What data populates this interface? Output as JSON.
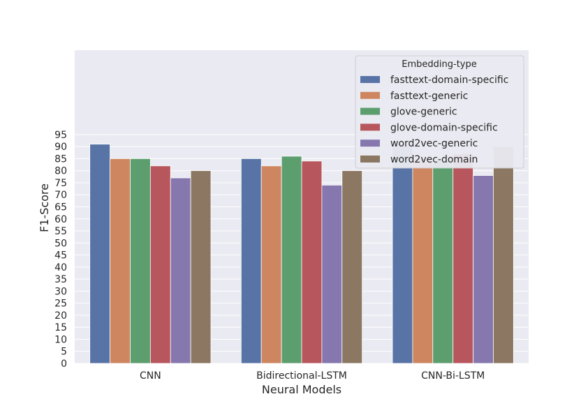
{
  "chart_data": {
    "type": "bar",
    "categories": [
      "CNN",
      "Bidirectional-LSTM",
      "CNN-Bi-LSTM"
    ],
    "series": [
      {
        "name": "fasttext-domain-specific",
        "color": "#5874a6",
        "values": [
          91,
          85,
          91
        ]
      },
      {
        "name": "fasttext-generic",
        "color": "#ce8660",
        "values": [
          85,
          82,
          85
        ]
      },
      {
        "name": "glove-generic",
        "color": "#5c9e6e",
        "values": [
          85,
          86,
          84
        ]
      },
      {
        "name": "glove-domain-specific",
        "color": "#b7575d",
        "values": [
          82,
          84,
          87
        ]
      },
      {
        "name": "word2vec-generic",
        "color": "#8678ae",
        "values": [
          77,
          74,
          78
        ]
      },
      {
        "name": "word2vec-domain",
        "color": "#8c7862",
        "values": [
          80,
          80,
          90
        ]
      }
    ],
    "xlabel": "Neural Models",
    "ylabel": "F1-Score",
    "yticks": [
      0,
      5,
      10,
      15,
      20,
      25,
      30,
      35,
      40,
      45,
      50,
      55,
      60,
      65,
      70,
      75,
      80,
      85,
      90,
      95
    ],
    "ylim": [
      0,
      130
    ],
    "legend": {
      "title": "Embedding-type",
      "placement": "top-right"
    },
    "grid": true,
    "background": "#eaeaf2"
  }
}
